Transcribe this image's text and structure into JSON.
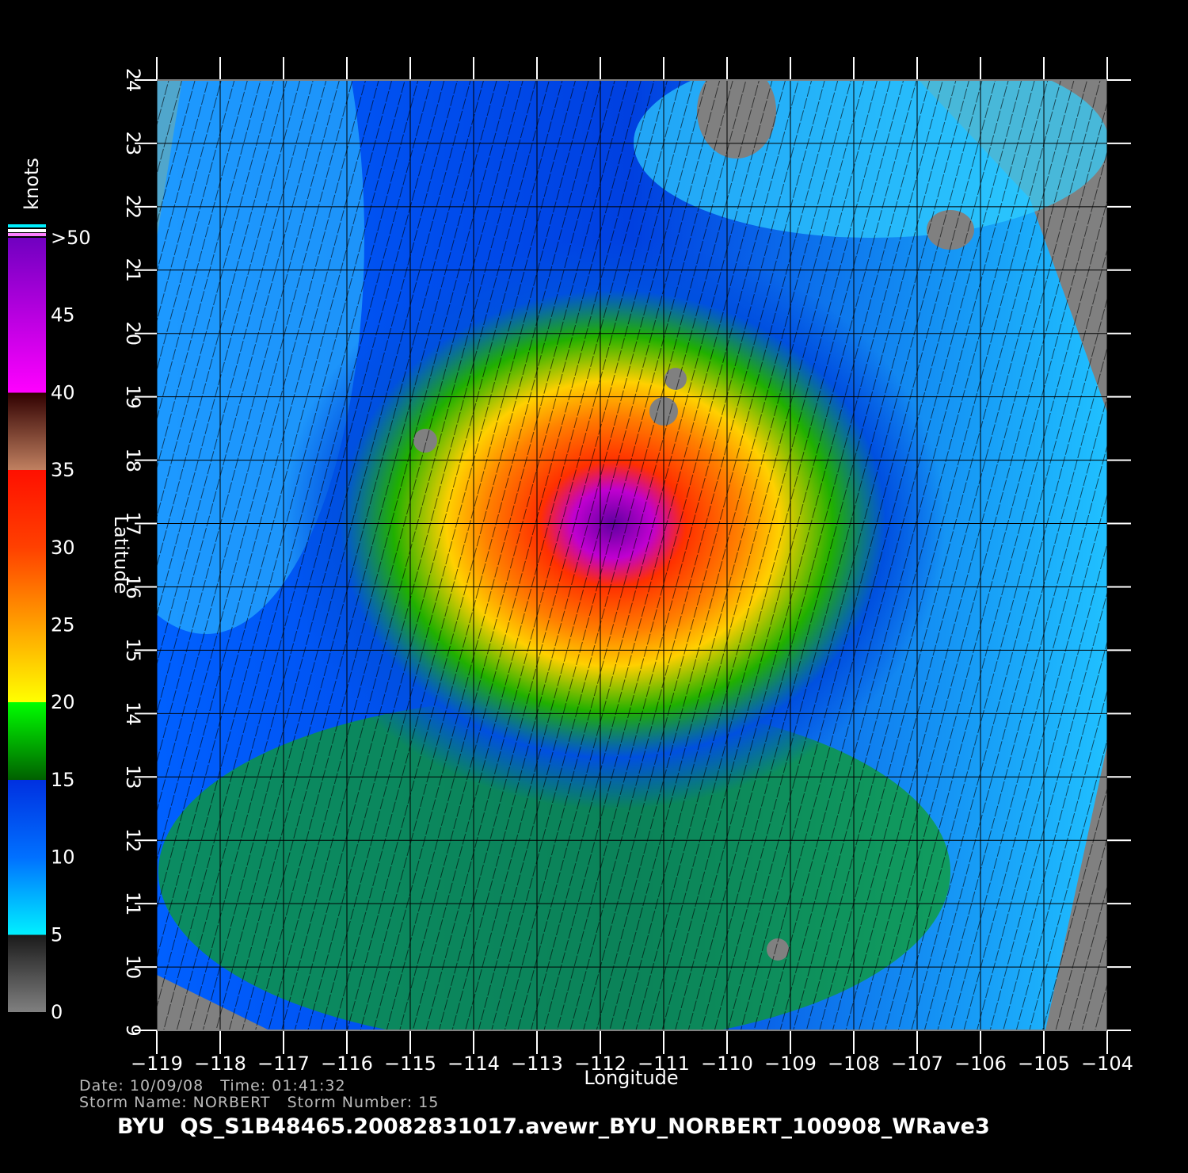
{
  "map": {
    "x_axis": {
      "label": "Longitude",
      "lim": [
        -119,
        -104
      ],
      "ticks": [
        {
          "value": -119,
          "label": "−119"
        },
        {
          "value": -118,
          "label": "−118"
        },
        {
          "value": -117,
          "label": "−117"
        },
        {
          "value": -116,
          "label": "−116"
        },
        {
          "value": -115,
          "label": "−115"
        },
        {
          "value": -114,
          "label": "−114"
        },
        {
          "value": -113,
          "label": "−113"
        },
        {
          "value": -112,
          "label": "−112"
        },
        {
          "value": -111,
          "label": "−111"
        },
        {
          "value": -110,
          "label": "−110"
        },
        {
          "value": -109,
          "label": "−109"
        },
        {
          "value": -108,
          "label": "−108"
        },
        {
          "value": -107,
          "label": "−107"
        },
        {
          "value": -106,
          "label": "−106"
        },
        {
          "value": -105,
          "label": "−105"
        },
        {
          "value": -104,
          "label": "−104"
        }
      ]
    },
    "y_axis": {
      "label": "Latitude",
      "lim": [
        9,
        24
      ],
      "ticks": [
        9,
        10,
        11,
        12,
        13,
        14,
        15,
        16,
        17,
        18,
        19,
        20,
        21,
        22,
        23,
        24
      ]
    },
    "colorbar": {
      "title": "knots",
      "lim": [
        0,
        50
      ],
      "ticks": [
        0,
        5,
        10,
        15,
        20,
        25,
        30,
        35,
        40,
        {
          "value": 45,
          "label": "45"
        },
        {
          "value": 50,
          "label": ">50"
        }
      ],
      "stops": [
        {
          "value": 0,
          "color": "#808080"
        },
        {
          "value": 5,
          "color": "#1a1a1a"
        },
        {
          "value": 5,
          "color": "#00f0ff"
        },
        {
          "value": 10,
          "color": "#0070ff"
        },
        {
          "value": 15,
          "color": "#0030e0"
        },
        {
          "value": 15,
          "color": "#006000"
        },
        {
          "value": 20,
          "color": "#00ff00"
        },
        {
          "value": 20,
          "color": "#ffff00"
        },
        {
          "value": 25,
          "color": "#ffa000"
        },
        {
          "value": 30,
          "color": "#ff4000"
        },
        {
          "value": 35,
          "color": "#ff1000"
        },
        {
          "value": 35,
          "color": "#c08060"
        },
        {
          "value": 40,
          "color": "#300000"
        },
        {
          "value": 40,
          "color": "#ff00ff"
        },
        {
          "value": 50,
          "color": "#7000c0"
        }
      ]
    },
    "info": {
      "date_time": "Date: 10/09/08   Time: 01:41:32",
      "storm": "Storm Name: NORBERT   Storm Number: 15",
      "file": "BYU  QS_S1B48465.20082831017.avewr_BYU_NORBERT_100908_WRave3"
    }
  }
}
